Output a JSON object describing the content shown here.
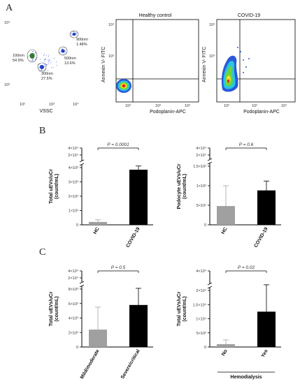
{
  "panel_labels": {
    "a": "A",
    "b": "B",
    "c": "C"
  },
  "colors": {
    "hc_bar": "#a0a0a0",
    "covid_bar": "#000000",
    "dot": "#3b4fd8",
    "gate": "#555555"
  },
  "flow": {
    "left": {
      "xlabel": "VSSC",
      "gates": [
        {
          "size": "100nm",
          "pct": "54.9%"
        },
        {
          "size": "300nm",
          "pct": "27.5%"
        },
        {
          "size": "500nm",
          "pct": "13.6%"
        },
        {
          "size": "900nm",
          "pct": "1.48%"
        }
      ]
    },
    "mid": {
      "title": "Healthy control",
      "xlabel": "Podoplanin-APC",
      "ylabel": "Annexin V- FITC"
    },
    "right": {
      "title": "COVID-19",
      "xlabel": "Podoplanin-APC",
      "ylabel": "Annexin V- FITC"
    }
  },
  "chart_data": [
    {
      "id": "B-left",
      "type": "bar",
      "categories": [
        "HC",
        "COVID-19"
      ],
      "values": [
        200,
        3850
      ],
      "errors": [
        150,
        260
      ],
      "ylabel_line1": "Total uEVs/uCr",
      "ylabel_line2": "(count/mL)",
      "ticks": [
        "0",
        "1×10³",
        "2×10³",
        "3×10³",
        "4×10³"
      ],
      "break_ticks": [
        "2×10⁴",
        "4×10⁴"
      ],
      "annotation": "P = 0.0001",
      "ylim": [
        0,
        4000
      ]
    },
    {
      "id": "B-right",
      "type": "bar",
      "categories": [
        "HC",
        "COVID-19"
      ],
      "values": [
        48,
        88
      ],
      "errors": [
        52,
        24
      ],
      "ylabel_line1": "Podocyte uEVs/uCr",
      "ylabel_line2": "(count/mL)",
      "ticks": [
        "0",
        "5×10¹",
        "1×10²",
        "1.5×10²"
      ],
      "break_ticks": [
        "2×10⁴",
        "4×10⁴"
      ],
      "annotation": "P = 0.6",
      "ylim": [
        0,
        150
      ]
    },
    {
      "id": "C-left",
      "type": "bar",
      "categories": [
        "Mild/moderate",
        "Severe/critical"
      ],
      "values": [
        2400,
        5800
      ],
      "errors": [
        3100,
        2300
      ],
      "ylabel_line1": "Total uEVs/uCr",
      "ylabel_line2": "(count/mL)",
      "ticks": [
        "0",
        "2×10³",
        "4×10³",
        "6×10³",
        "8×10³"
      ],
      "break_ticks": [
        "2×10⁴",
        "4×10⁴"
      ],
      "annotation": "P = 0.5",
      "ylim": [
        0,
        8000
      ]
    },
    {
      "id": "C-right",
      "type": "bar",
      "categories": [
        "No",
        "Yes"
      ],
      "values": [
        1000,
        12500
      ],
      "errors": [
        1500,
        9500
      ],
      "ylabel_line1": "Total uEVs/uCr",
      "ylabel_line2": "(count/mL)",
      "ticks": [
        "0",
        "5×10³",
        "1×10⁴",
        "1.5×10⁴",
        "2×10⁴"
      ],
      "break_ticks": [
        "4×10⁴"
      ],
      "annotation": "P = 0.02",
      "xgroup_label": "Hemodialysis",
      "ylim": [
        0,
        20000
      ]
    }
  ]
}
